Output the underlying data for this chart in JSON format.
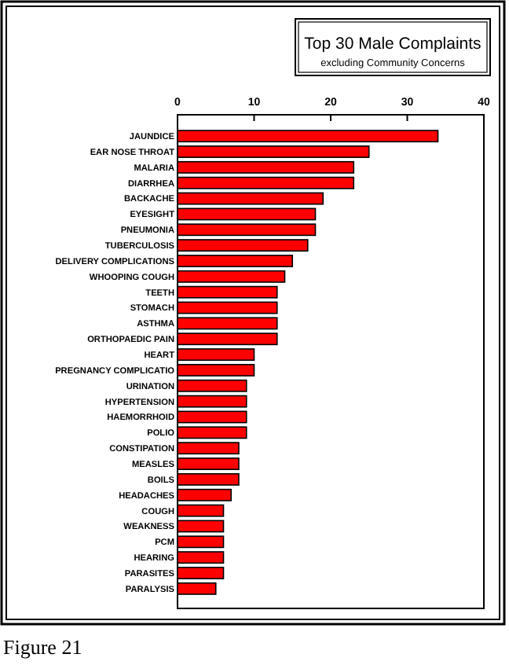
{
  "chart_data": {
    "type": "bar",
    "orientation": "horizontal",
    "title": "Top 30 Male Complaints",
    "subtitle": "excluding Community Concerns",
    "categories": [
      "JAUNDICE",
      "EAR NOSE THROAT",
      "MALARIA",
      "DIARRHEA",
      "BACKACHE",
      "EYESIGHT",
      "PNEUMONIA",
      "TUBERCULOSIS",
      "DELIVERY COMPLICATIONS",
      "WHOOPING COUGH",
      "TEETH",
      "STOMACH",
      "ASTHMA",
      "ORTHOPAEDIC PAIN",
      "HEART",
      "PREGNANCY COMPLICATIO",
      "URINATION",
      "HYPERTENSION",
      "HAEMORRHOID",
      "POLIO",
      "CONSTIPATION",
      "MEASLES",
      "BOILS",
      "HEADACHES",
      "COUGH",
      "WEAKNESS",
      "PCM",
      "HEARING",
      "PARASITES",
      "PARALYSIS"
    ],
    "values": [
      34,
      25,
      23,
      23,
      19,
      18,
      18,
      17,
      15,
      14,
      13,
      13,
      13,
      13,
      10,
      10,
      9,
      9,
      9,
      9,
      8,
      8,
      8,
      7,
      6,
      6,
      6,
      6,
      6,
      5
    ],
    "color": "#ff0000",
    "xlim": [
      0,
      40
    ],
    "xticks": [
      0,
      10,
      20,
      30,
      40
    ],
    "grid": false,
    "annotations": [
      "Figure 21"
    ]
  }
}
